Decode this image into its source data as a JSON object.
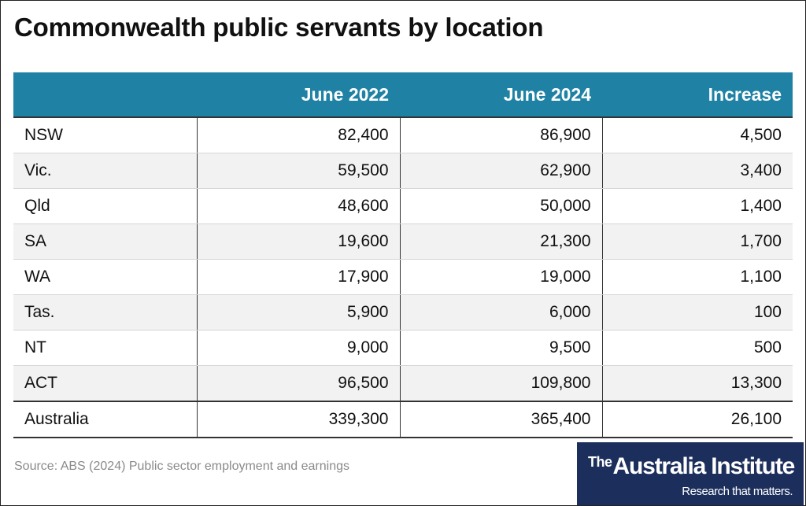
{
  "title": "Commonwealth public servants by location",
  "source": "Source: ABS (2024) Public sector employment and earnings",
  "logo": {
    "the": "The",
    "name": "Australia Institute",
    "tagline": "Research that matters."
  },
  "colors": {
    "header_bg": "#1f82a5",
    "logo_bg": "#1c2e5c",
    "alt_row_bg": "#f2f2f2"
  },
  "chart_data": {
    "type": "table",
    "title": "Commonwealth public servants by location",
    "columns": [
      "",
      "June 2022",
      "June 2024",
      "Increase"
    ],
    "rows": [
      [
        "NSW",
        "82,400",
        "86,900",
        "4,500"
      ],
      [
        "Vic.",
        "59,500",
        "62,900",
        "3,400"
      ],
      [
        "Qld",
        "48,600",
        "50,000",
        "1,400"
      ],
      [
        "SA",
        "19,600",
        "21,300",
        "1,700"
      ],
      [
        "WA",
        "17,900",
        "19,000",
        "1,100"
      ],
      [
        "Tas.",
        "5,900",
        "6,000",
        "100"
      ],
      [
        "NT",
        "9,000",
        "9,500",
        "500"
      ],
      [
        "ACT",
        "96,500",
        "109,800",
        "13,300"
      ],
      [
        "Australia",
        "339,300",
        "365,400",
        "26,100"
      ]
    ]
  }
}
